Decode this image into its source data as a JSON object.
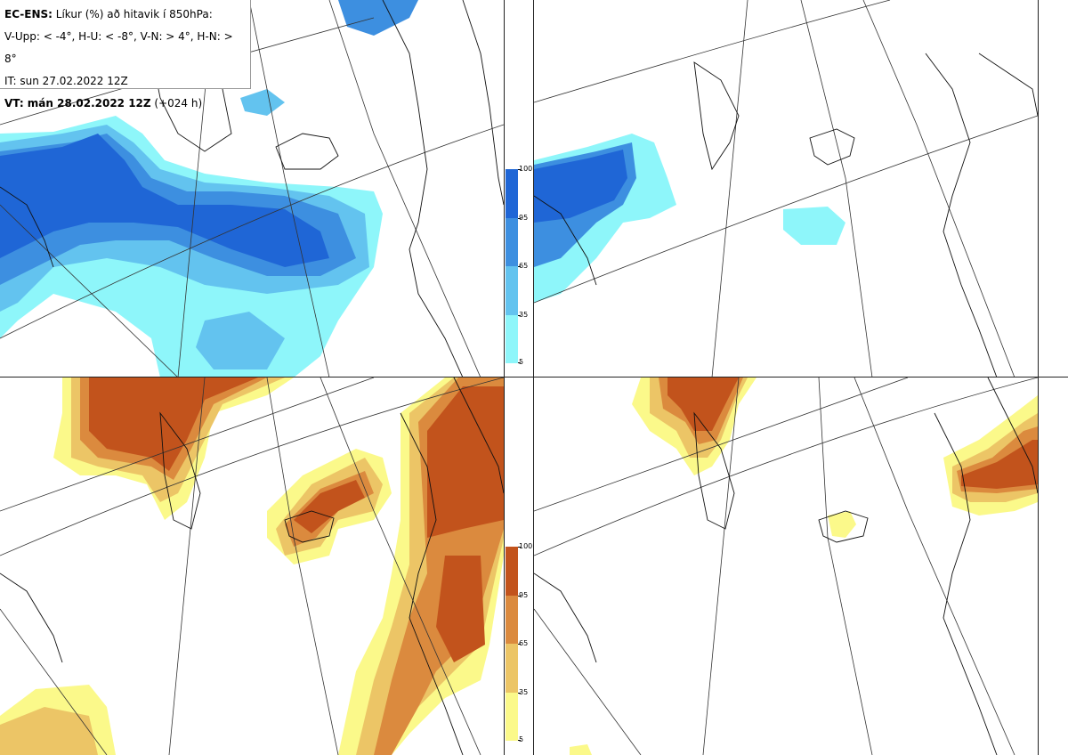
{
  "info": {
    "model": "EC-ENS:",
    "title_rest": " Líkur (%) að hitavik í 850hPa:",
    "thresholds": "V-Upp: < -4°, H-U: < -8°, V-N: > 4°, H-N: > 8°",
    "it": "IT: sun 27.02.2022 12Z",
    "vt_bold": "VT: mán 28.02.2022 12Z",
    "vt_rest": " (+024 h)"
  },
  "panels": [
    {
      "id": "upper-left",
      "scheme": "cold"
    },
    {
      "id": "upper-right",
      "scheme": "cold"
    },
    {
      "id": "lower-left",
      "scheme": "warm"
    },
    {
      "id": "lower-right",
      "scheme": "warm"
    }
  ],
  "colorbar": {
    "ticks": [
      "100",
      "95",
      "65",
      "35",
      "5"
    ],
    "cold_colors": [
      "#1f66d6",
      "#3d8fe0",
      "#63c3ef",
      "#8ef6fa"
    ],
    "warm_colors": [
      "#c2531c",
      "#db8a3e",
      "#ecc566",
      "#fbf98a"
    ]
  }
}
